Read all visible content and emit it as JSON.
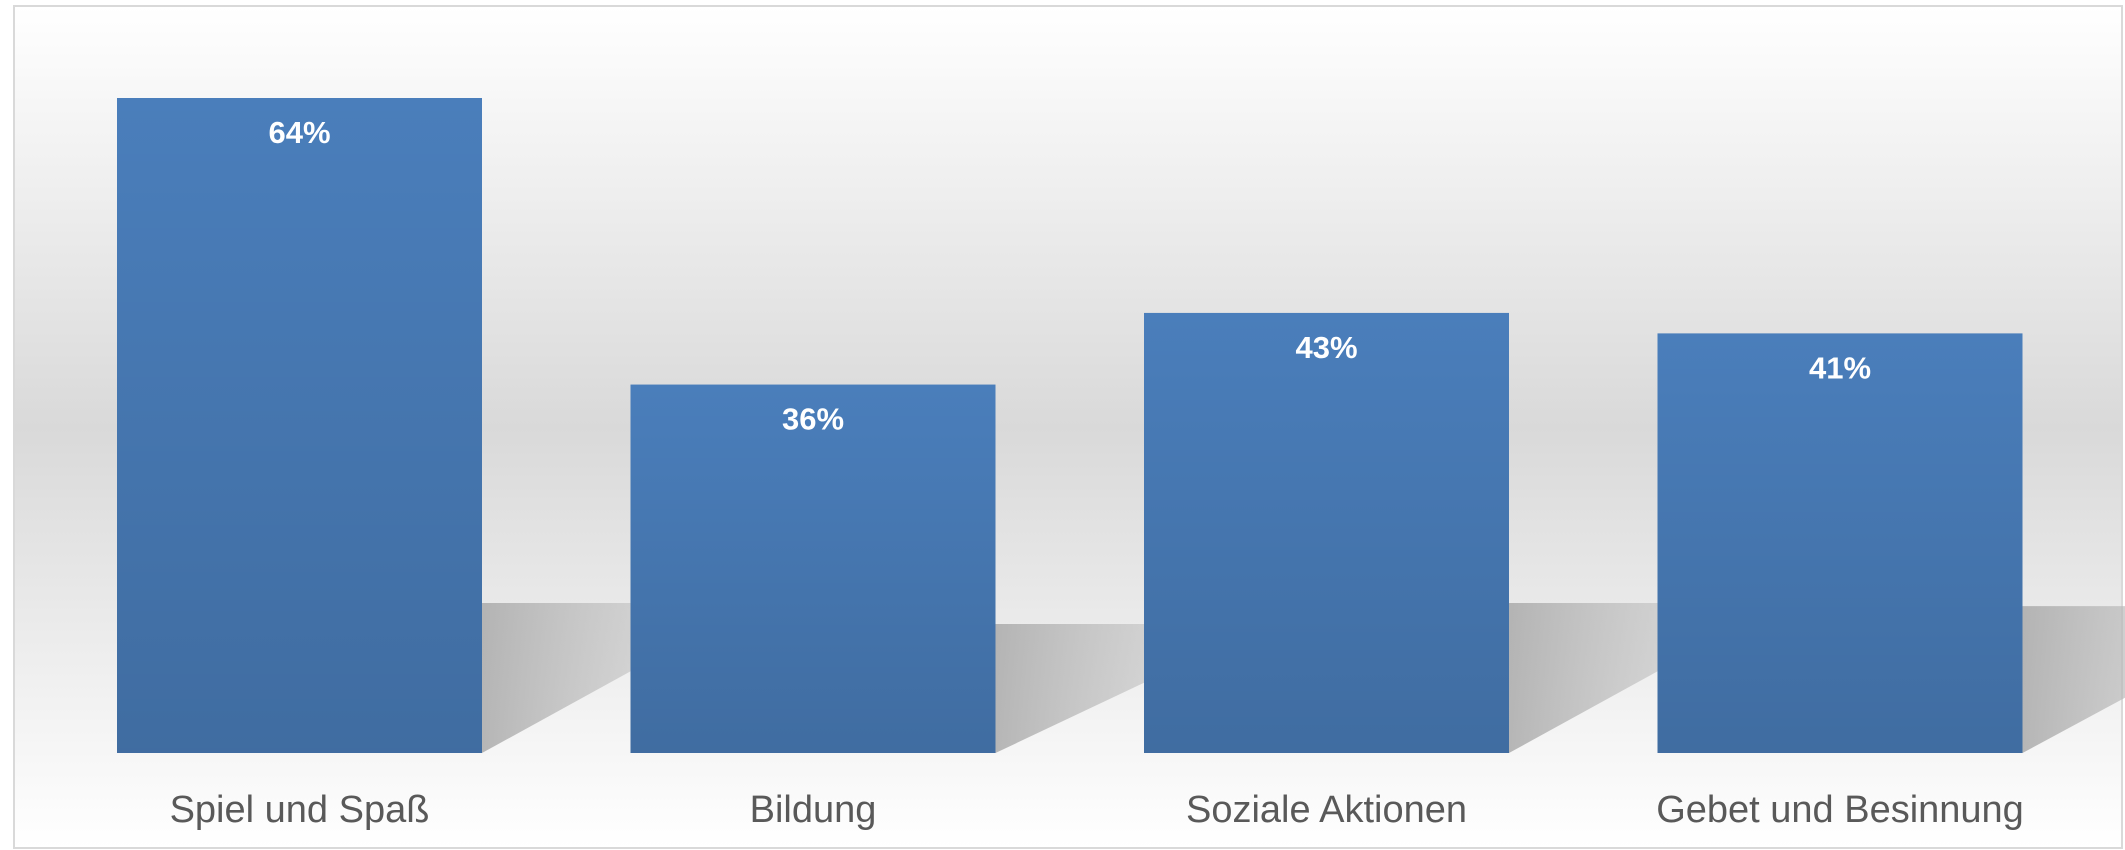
{
  "chart_data": {
    "type": "bar",
    "categories": [
      "Spiel und Spaß",
      "Bildung",
      "Soziale Aktionen",
      "Gebet und Besinnung"
    ],
    "values": [
      64,
      36,
      43,
      41
    ],
    "value_labels": [
      "64%",
      "36%",
      "43%",
      "41%"
    ],
    "color": "#4a7ebb"
  }
}
